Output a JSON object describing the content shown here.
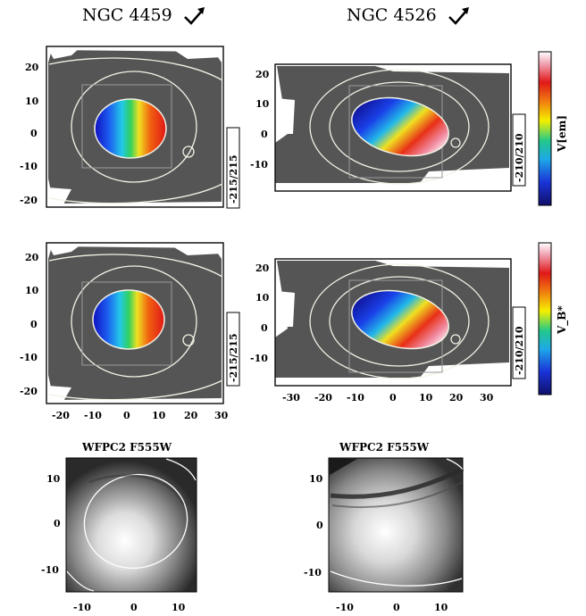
{
  "titles": {
    "left": "NGC 4459",
    "right": "NGC 4526",
    "hst_left": "WFPC2 F555W",
    "hst_right": "WFPC2 F555W"
  },
  "colorbars": {
    "top_label": "V[em]",
    "bottom_label": "V_B*"
  },
  "range_labels": {
    "ngc4459_top": "-215/215",
    "ngc4459_bottom": "-215/215",
    "ngc4526_top": "-210/210",
    "ngc4526_bottom": "-210/210"
  },
  "ticks": {
    "ngc4459_y": [
      "20",
      "10",
      "0",
      "-10",
      "-20"
    ],
    "ngc4459_x": [
      "-20",
      "-10",
      "0",
      "10",
      "20",
      "30"
    ],
    "ngc4526_y": [
      "20",
      "10",
      "0",
      "-10"
    ],
    "ngc4526_x": [
      "-30",
      "-20",
      "-10",
      "0",
      "10",
      "20",
      "30"
    ],
    "hst_y": [
      "10",
      "0",
      "-10"
    ],
    "hst_x": [
      "-10",
      "0",
      "10"
    ]
  },
  "colors": {
    "background_gray": "#555555",
    "contour": "#f2f2e6",
    "colorbar_stops": [
      "#10106a",
      "#1a33d8",
      "#1fa8e8",
      "#22c88a",
      "#f4f000",
      "#f07a10",
      "#e01818",
      "#f0a0b0",
      "#ffffff"
    ]
  }
}
